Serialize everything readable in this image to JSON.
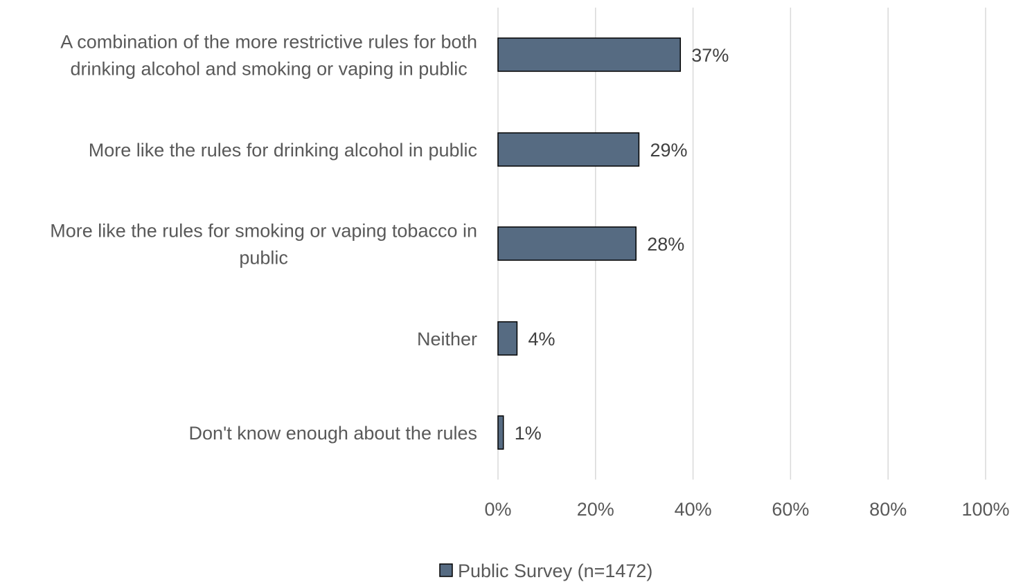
{
  "chart_data": {
    "type": "bar",
    "orientation": "horizontal",
    "categories": [
      [
        "A combination of the more restrictive rules for both",
        "drinking alcohol and smoking or vaping in public"
      ],
      [
        "More like the rules for drinking alcohol in public"
      ],
      [
        "More like the rules for smoking or vaping tobacco in",
        "public"
      ],
      [
        "Neither"
      ],
      [
        "Don't know enough about the rules"
      ]
    ],
    "series": [
      {
        "name": "Public Survey (n=1472)",
        "values": [
          37.4,
          28.9,
          28.3,
          3.9,
          1.1
        ],
        "data_labels": [
          "37%",
          "29%",
          "28%",
          "4%",
          "1%"
        ],
        "color": "#566b82"
      }
    ],
    "xlim": [
      0,
      100
    ],
    "xticks": [
      0,
      20,
      40,
      60,
      80,
      100
    ],
    "xtick_labels": [
      "0%",
      "20%",
      "40%",
      "60%",
      "80%",
      "100%"
    ],
    "grid": true,
    "legend_position": "bottom",
    "colors": {
      "bar_fill": "#566b82",
      "bar_stroke": "#000000",
      "gridline": "#d9d9d9",
      "text": "#595959"
    }
  }
}
